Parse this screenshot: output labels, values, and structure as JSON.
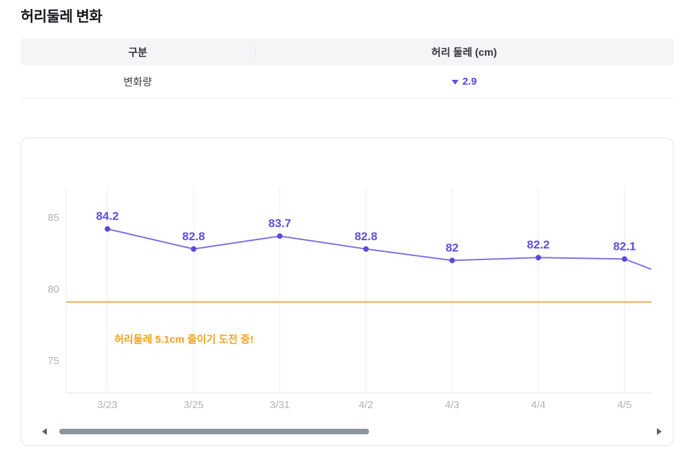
{
  "page": {
    "title": "허리둘레 변화"
  },
  "table": {
    "headers": [
      "구분",
      "허리 둘레 (cm)"
    ],
    "row": {
      "label": "변화량",
      "change_direction": "down",
      "change_value": "2.9"
    }
  },
  "chart_data": {
    "type": "line",
    "title": "",
    "xlabel": "",
    "ylabel": "",
    "categories": [
      "3/23",
      "3/25",
      "3/31",
      "4/2",
      "4/3",
      "4/4",
      "4/5"
    ],
    "values": [
      84.2,
      82.8,
      83.7,
      82.8,
      82,
      82.2,
      82.1
    ],
    "value_labels": [
      "84.2",
      "82.8",
      "83.7",
      "82.8",
      "82",
      "82.2",
      "82.1"
    ],
    "partial_next_value": 79.8,
    "y_ticks": [
      85,
      80,
      75
    ],
    "ylim": [
      73.5,
      87
    ],
    "grid": "vertical",
    "legend_position": "none",
    "goal_line": {
      "value": 79.1,
      "color": "#f3ab57"
    },
    "annotation": {
      "text": "허리둘레 5.1cm 줄이기 도전 중!",
      "color": "#f5a122"
    },
    "series_color": "#7b71e3",
    "point_color": "#574bd6",
    "label_color": "#5b4ee2",
    "axis_text_color": "#adb2bb",
    "grid_color": "#eceef2",
    "axis_line_color": "#dfe2e7"
  },
  "scrollbar": {
    "left_arrow": "scroll-left",
    "right_arrow": "scroll-right"
  }
}
